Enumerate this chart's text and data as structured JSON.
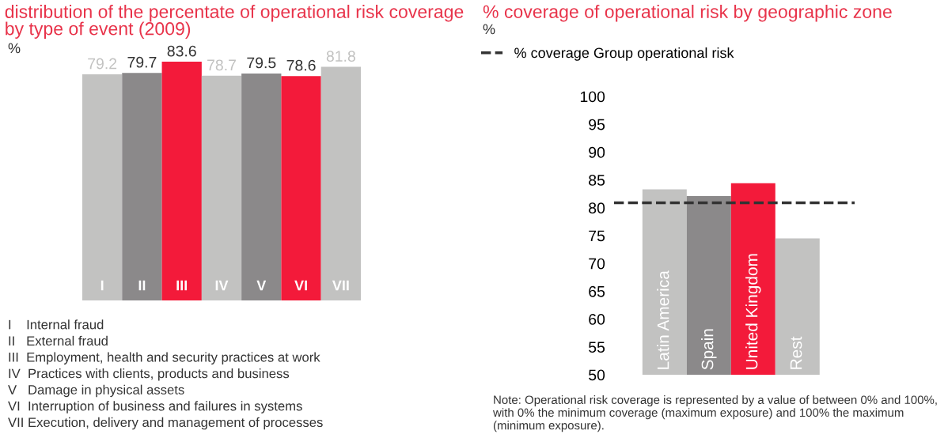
{
  "chart_data": [
    {
      "type": "bar",
      "title": "distribution of the percentate of operational risk coverage by type of event (2009)",
      "ylabel": "%",
      "data_labels": true,
      "grid": false,
      "categories": [
        "I",
        "II",
        "III",
        "IV",
        "V",
        "VI",
        "VII"
      ],
      "values": [
        79.2,
        79.7,
        83.6,
        78.7,
        79.5,
        78.6,
        81.8
      ],
      "colors": [
        "#c2c2c1",
        "#8b898a",
        "#f31a3a",
        "#c2c2c1",
        "#8b898a",
        "#f31a3a",
        "#c2c2c1"
      ],
      "annotations": [
        "I    Internal fraud",
        "II   External fraud",
        "III  Employment, health and security practices at work",
        "IV  Practices with clients, products and business",
        "V   Damage in physical assets",
        "VI  Interruption of business and failures in systems",
        "VII Execution, delivery and management of processes"
      ]
    },
    {
      "type": "bar",
      "title": "% coverage of operational risk by geographic zone",
      "ylabel": "%",
      "grid": false,
      "legend": "top left",
      "categories": [
        "Latin America",
        "Spain",
        "United Kingdom",
        "Rest"
      ],
      "values": [
        83.3,
        82.1,
        84.4,
        74.5
      ],
      "colors": [
        "#c2c2c1",
        "#8b898a",
        "#f31a3a",
        "#c2c2c1"
      ],
      "ylim": [
        50,
        100
      ],
      "yticks": [
        50,
        55,
        60,
        65,
        70,
        75,
        80,
        85,
        90,
        95,
        100
      ],
      "ref_lines": [
        {
          "axis": "y",
          "value": 80.9,
          "label": "% coverage Group operational risk",
          "color": "#333333",
          "line_style": "dashed"
        }
      ],
      "annotations": [
        "Note: Operational risk coverage is represented by a value of between 0% and 100%, with 0% the minimum coverage (maximum exposure) and 100% the maximum (minimum exposure)."
      ]
    }
  ]
}
